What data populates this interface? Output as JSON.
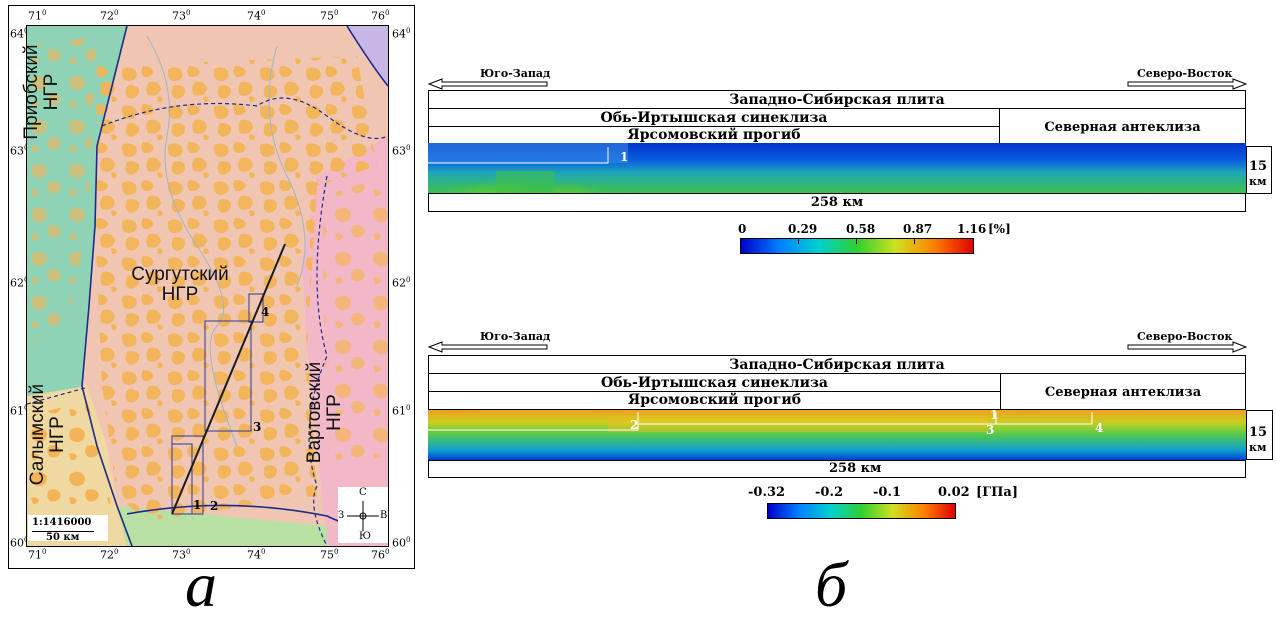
{
  "map": {
    "lat_labels": [
      "64",
      "63",
      "62",
      "61",
      "60"
    ],
    "lon_labels": [
      "71",
      "72",
      "73",
      "74",
      "75",
      "76"
    ],
    "deg_symbol": "0",
    "regions": {
      "priob_line1": "Приобский",
      "priob_line2": "НГР",
      "surgut_line1": "Сургутский",
      "surgut_line2": "НГР",
      "salym_line1": "Салымский",
      "salym_line2": "НГР",
      "vartov_line1": "Вартовский",
      "vartov_line2": "НГР"
    },
    "points": [
      "1",
      "2",
      "3",
      "4"
    ],
    "scale_ratio": "1:1416000",
    "scale_km": "50 км",
    "compass": {
      "n": "С",
      "s": "Ю",
      "w": "З",
      "e": "В"
    },
    "colors": {
      "priob": "#8fd3b6",
      "surgut": "#f0c6b3",
      "fields": "#f3b457",
      "vartov": "#f2b8c8",
      "salym": "#f0d9a0",
      "line": "#1a1a1a",
      "boundary": "#1e2a8c"
    }
  },
  "panel_letters": {
    "a": "а",
    "b": "б"
  },
  "section1": {
    "dir_left": "Юго-Запад",
    "dir_right": "Северо-Восток",
    "plate": "Западно-Сибирская плита",
    "syneclise": "Обь-Иртышская синеклиза",
    "trough": "Ярсомовский прогиб",
    "anteclise": "Северная антеклиза",
    "depth_value": "15",
    "depth_unit": "км",
    "length": "258 км",
    "point_labels": [
      "1"
    ],
    "colorbar": {
      "ticks": [
        "0",
        "0.29",
        "0.58",
        "0.87",
        "1.16"
      ],
      "unit": "[%]"
    }
  },
  "section2": {
    "dir_left": "Юго-Запад",
    "dir_right": "Северо-Восток",
    "plate": "Западно-Сибирская плита",
    "syneclise": "Обь-Иртышская синеклиза",
    "trough": "Ярсомовский прогиб",
    "anteclise": "Северная антеклиза",
    "depth_value": "15",
    "depth_unit": "км",
    "length": "258 км",
    "point_labels": [
      "2",
      "1",
      "3",
      "4"
    ],
    "colorbar": {
      "ticks": [
        "-0.32",
        "-0.2",
        "-0.1",
        "0.02"
      ],
      "unit": "[ГПа]"
    }
  }
}
